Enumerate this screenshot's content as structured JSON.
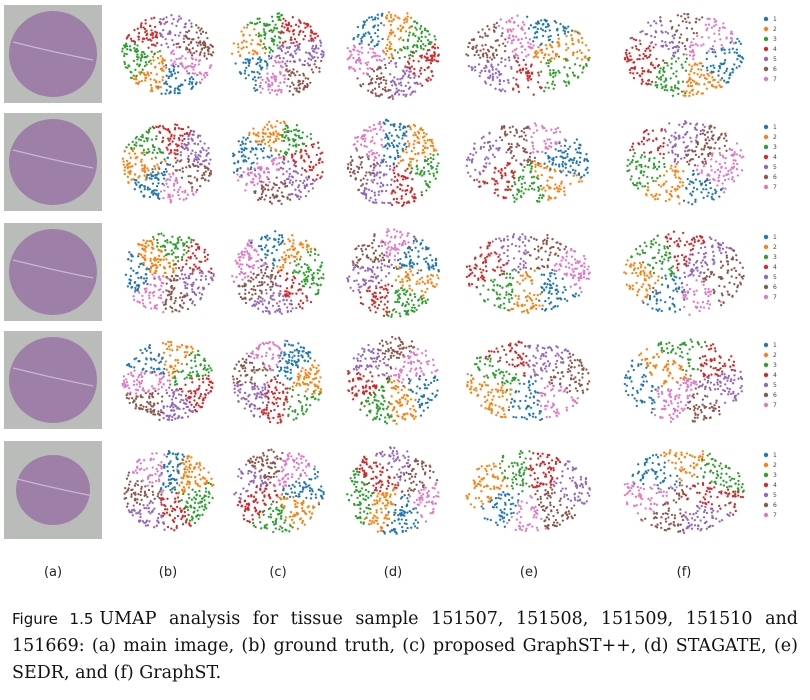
{
  "figure": {
    "column_labels": [
      "(a)",
      "(b)",
      "(c)",
      "(d)",
      "(e)",
      "(f)"
    ],
    "rows": 5,
    "legend_labels": [
      "1",
      "2",
      "3",
      "4",
      "5",
      "6",
      "7"
    ],
    "cluster_colors": [
      "#1f77b4",
      "#ff7f0e",
      "#2ca02c",
      "#d62728",
      "#9467bd",
      "#8c564b",
      "#e377c2"
    ],
    "tissue_color": "#9a7aa6",
    "tissue_bg_color": "#b9bcb9"
  },
  "caption": {
    "ref": "Figure 1.5",
    "text": "UMAP analysis for tissue sample 151507, 151508, 151509, 151510 and 151669: (a) main image, (b) ground truth, (c) proposed GraphST++, (d) STAGATE, (e) SEDR, and (f) GraphST."
  }
}
